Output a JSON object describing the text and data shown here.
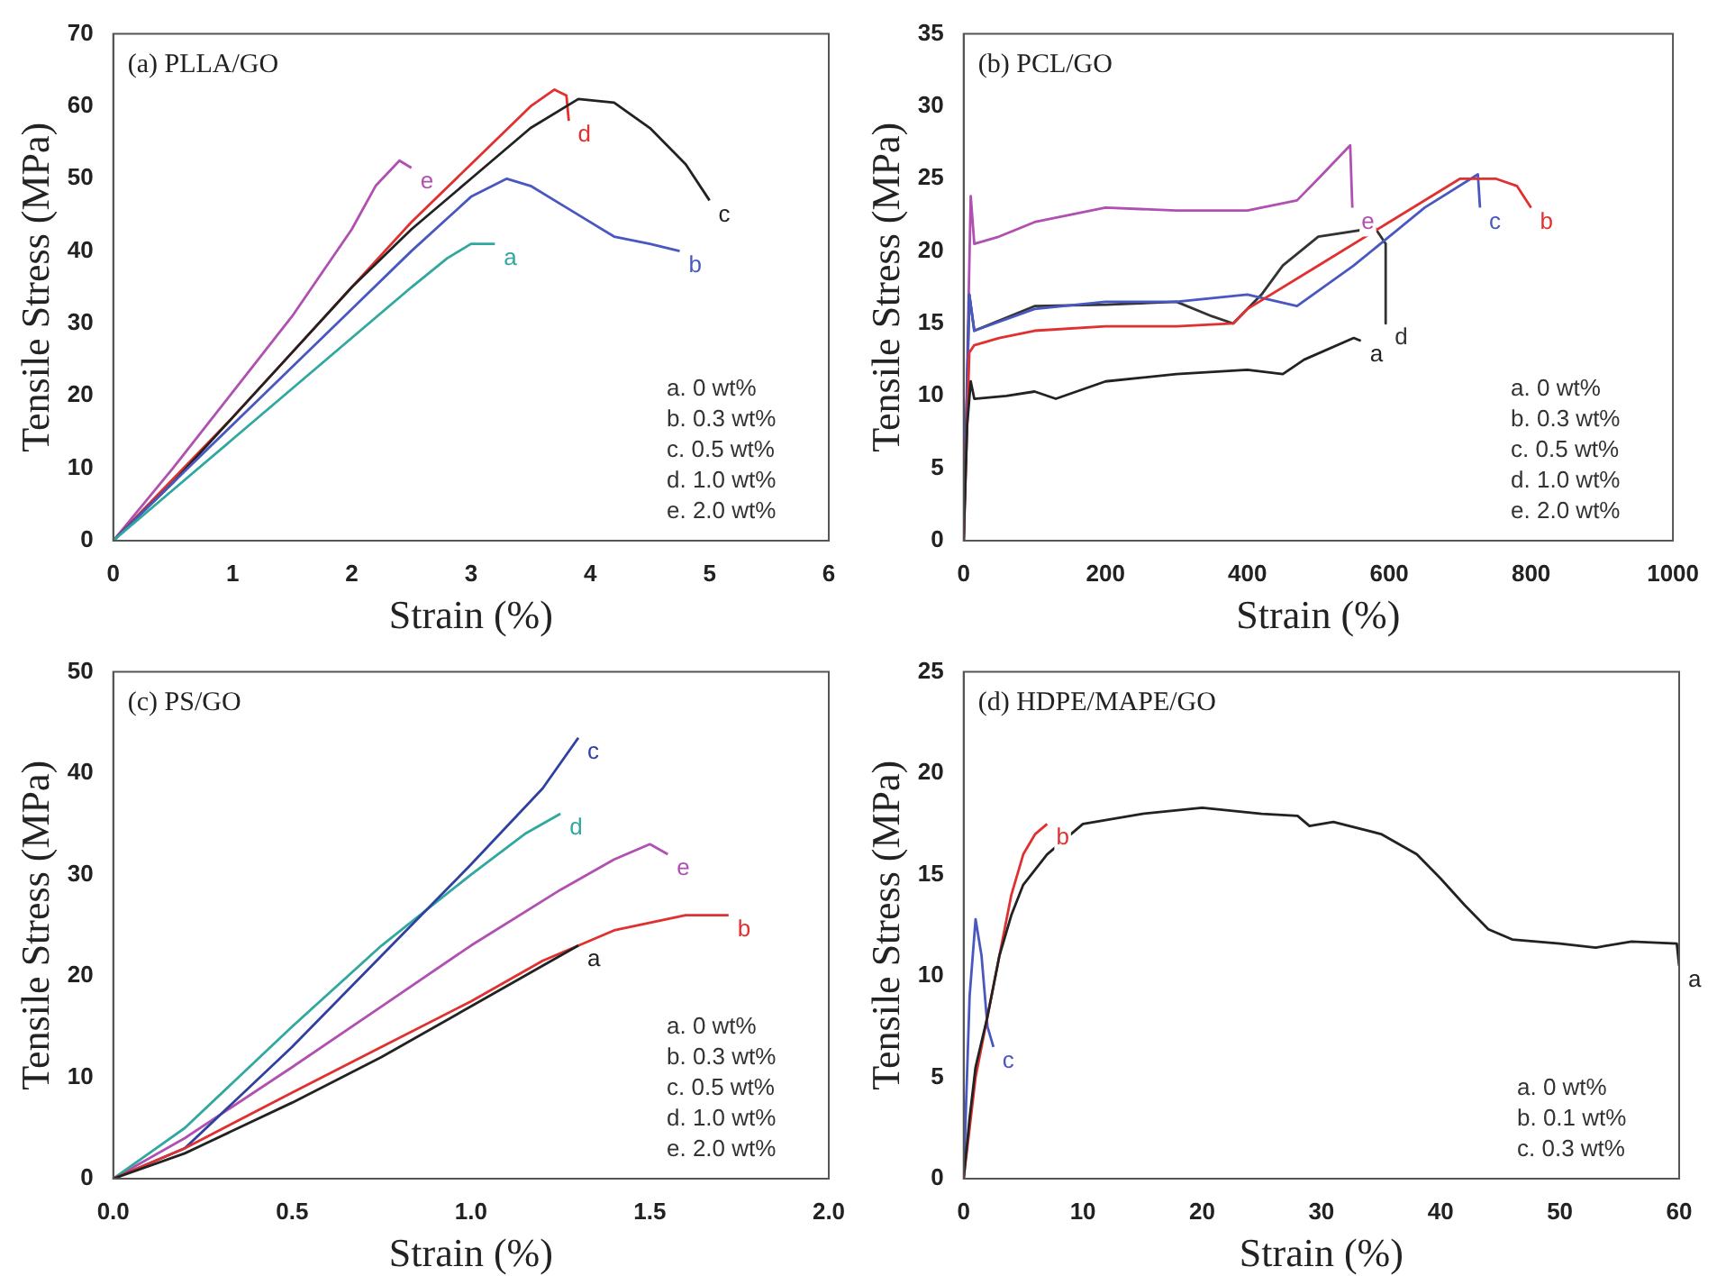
{
  "chart_data": [
    {
      "type": "line",
      "title": "(a) PLLA/GO",
      "xlabel": "Strain (%)",
      "ylabel": "Tensile Stress (MPa)",
      "xlim": [
        0,
        6
      ],
      "ylim": [
        0,
        70
      ],
      "xticks": [
        0,
        1,
        2,
        3,
        4,
        5,
        6
      ],
      "yticks": [
        0,
        10,
        20,
        30,
        40,
        50,
        60,
        70
      ],
      "grid": false,
      "marker": "none",
      "line_style": "solid",
      "annotations": [
        "a. 0 wt%",
        "b. 0.3 wt%",
        "c. 0.5 wt%",
        "d. 1.0 wt%",
        "e. 2.0 wt%"
      ],
      "series": [
        {
          "name": "a",
          "color": "#30a8a0",
          "x": [
            0,
            0.5,
            1,
            1.5,
            2,
            2.5,
            2.8,
            3.0,
            3.2
          ],
          "values": [
            0,
            7,
            14,
            21,
            28,
            35,
            39,
            41,
            41
          ]
        },
        {
          "name": "b",
          "color": "#4858c0",
          "x": [
            0,
            0.5,
            1,
            1.5,
            2,
            2.5,
            3,
            3.3,
            3.5,
            3.8,
            4.2,
            4.5,
            4.75
          ],
          "values": [
            0,
            8,
            16,
            24,
            32,
            40,
            47.5,
            50,
            49,
            46,
            42,
            41,
            40
          ]
        },
        {
          "name": "c",
          "color": "#222222",
          "x": [
            0,
            0.5,
            1,
            1.5,
            2,
            2.5,
            3,
            3.5,
            3.9,
            4.2,
            4.5,
            4.8,
            5
          ],
          "values": [
            0,
            8,
            17,
            26,
            35,
            43,
            50,
            57,
            61,
            60.5,
            57,
            52,
            47
          ]
        },
        {
          "name": "d",
          "color": "#e03030",
          "x": [
            0,
            0.5,
            1,
            1.5,
            2,
            2.5,
            3,
            3.5,
            3.7,
            3.8,
            3.82
          ],
          "values": [
            0,
            8.5,
            17,
            26,
            35,
            44,
            52,
            60,
            62.3,
            61.5,
            58
          ]
        },
        {
          "name": "e",
          "color": "#b050b0",
          "x": [
            0,
            0.5,
            1,
            1.5,
            2,
            2.2,
            2.4,
            2.5
          ],
          "values": [
            0,
            10,
            20.5,
            31,
            43,
            49,
            52.5,
            51.5
          ]
        }
      ]
    },
    {
      "type": "line",
      "title": "(b) PCL/GO",
      "xlabel": "Strain (%)",
      "ylabel": "Tensile Stress (MPa)",
      "xlim": [
        0,
        1000
      ],
      "ylim": [
        0,
        35
      ],
      "xticks": [
        0,
        200,
        400,
        600,
        800,
        1000
      ],
      "yticks": [
        0,
        5,
        10,
        15,
        20,
        25,
        30,
        35
      ],
      "grid": false,
      "marker": "none",
      "line_style": "solid",
      "annotations": [
        "a. 0 wt%",
        "b. 0.3 wt%",
        "c. 0.5 wt%",
        "d. 1.0 wt%",
        "e. 2.0 wt%"
      ],
      "series": [
        {
          "name": "a",
          "color": "#222222",
          "x": [
            0,
            5,
            10,
            15,
            60,
            100,
            130,
            200,
            300,
            400,
            450,
            480,
            550,
            560
          ],
          "values": [
            0,
            8,
            11,
            9.8,
            10,
            10.3,
            9.8,
            11,
            11.5,
            11.8,
            11.5,
            12.5,
            14,
            13.8
          ]
        },
        {
          "name": "b",
          "color": "#e03030",
          "x": [
            0,
            8,
            15,
            50,
            100,
            200,
            300,
            380,
            400,
            500,
            600,
            700,
            750,
            780,
            800
          ],
          "values": [
            0,
            13,
            13.5,
            14,
            14.5,
            14.8,
            14.8,
            15,
            16,
            19,
            22,
            25,
            25,
            24.5,
            23
          ]
        },
        {
          "name": "c",
          "color": "#4858c0",
          "x": [
            0,
            8,
            15,
            100,
            200,
            300,
            400,
            470,
            550,
            650,
            725,
            728
          ],
          "values": [
            0,
            17,
            14.5,
            16,
            16.5,
            16.5,
            17,
            16.2,
            19,
            23,
            25.3,
            23
          ]
        },
        {
          "name": "d",
          "color": "#333333",
          "x": [
            0,
            8,
            15,
            100,
            200,
            300,
            350,
            380,
            420,
            450,
            500,
            580,
            595,
            595
          ],
          "values": [
            0,
            17,
            14.5,
            16.2,
            16.3,
            16.5,
            15.5,
            15,
            17,
            19,
            21,
            21.6,
            20.5,
            15
          ]
        },
        {
          "name": "e",
          "color": "#b050b0",
          "x": [
            0,
            10,
            15,
            50,
            100,
            150,
            200,
            300,
            400,
            470,
            500,
            545,
            548
          ],
          "values": [
            0,
            23.8,
            20.5,
            21,
            22,
            22.5,
            23,
            22.8,
            22.8,
            23.5,
            25,
            27.3,
            23
          ]
        }
      ]
    },
    {
      "type": "line",
      "title": "(c) PS/GO",
      "xlabel": "Strain (%)",
      "ylabel": "Tensile Stress (MPa)",
      "xlim": [
        0,
        2
      ],
      "ylim": [
        0,
        50
      ],
      "xticks": [
        {
          "value": 0,
          "label": "0.0"
        },
        0.5,
        {
          "value": 1,
          "label": "1.0"
        },
        1.5,
        {
          "value": 2,
          "label": "2.0"
        }
      ],
      "yticks": [
        0,
        10,
        20,
        30,
        40,
        50
      ],
      "grid": false,
      "marker": "none",
      "line_style": "solid",
      "annotations": [
        "a. 0 wt%",
        "b. 0.3 wt%",
        "c. 0.5 wt%",
        "d. 1.0 wt%",
        "e. 2.0 wt%"
      ],
      "series": [
        {
          "name": "a",
          "color": "#222222",
          "x": [
            0,
            0.2,
            0.5,
            0.75,
            1,
            1.2,
            1.3
          ],
          "values": [
            0,
            2.5,
            7.5,
            12,
            17,
            21,
            23
          ]
        },
        {
          "name": "b",
          "color": "#e03030",
          "x": [
            0,
            0.2,
            0.5,
            0.75,
            1,
            1.2,
            1.4,
            1.6,
            1.72
          ],
          "values": [
            0,
            3,
            8.5,
            13,
            17.5,
            21.5,
            24.5,
            26,
            26
          ]
        },
        {
          "name": "c",
          "color": "#3040a0",
          "x": [
            0,
            0.2,
            0.5,
            0.75,
            1,
            1.2,
            1.3
          ],
          "values": [
            0,
            3,
            13,
            22,
            31,
            38.5,
            43.5
          ]
        },
        {
          "name": "d",
          "color": "#30a8a0",
          "x": [
            0,
            0.2,
            0.5,
            0.75,
            1,
            1.15,
            1.25
          ],
          "values": [
            0,
            5,
            15,
            23,
            30,
            34,
            36
          ]
        },
        {
          "name": "e",
          "color": "#b050b0",
          "x": [
            0,
            0.2,
            0.5,
            0.75,
            1,
            1.25,
            1.4,
            1.5,
            1.55
          ],
          "values": [
            0,
            4,
            11,
            17,
            23,
            28.5,
            31.5,
            33,
            32
          ]
        }
      ]
    },
    {
      "type": "line",
      "title": "(d) HDPE/MAPE/GO",
      "xlabel": "Strain (%)",
      "ylabel": "Tensile Stress (MPa)",
      "xlim": [
        0,
        60
      ],
      "ylim": [
        0,
        25
      ],
      "xticks": [
        0,
        10,
        20,
        30,
        40,
        50,
        60
      ],
      "yticks": [
        0,
        5,
        10,
        15,
        20,
        25
      ],
      "grid": false,
      "marker": "none",
      "line_style": "solid",
      "annotations": [
        "a. 0 wt%",
        "b. 0.1 wt%",
        "c. 0.3 wt%"
      ],
      "series": [
        {
          "name": "a",
          "color": "#222222",
          "x": [
            0,
            0.5,
            1,
            2,
            3,
            4,
            5,
            7,
            10,
            15,
            20,
            25,
            28,
            29,
            31,
            35,
            38,
            40,
            42,
            44,
            46,
            50,
            53,
            56,
            59.8,
            60
          ],
          "values": [
            0,
            3,
            5.5,
            8,
            11,
            13,
            14.5,
            16,
            17.5,
            18,
            18.3,
            18,
            17.9,
            17.4,
            17.6,
            17,
            16,
            14.8,
            13.5,
            12.3,
            11.8,
            11.6,
            11.4,
            11.7,
            11.6,
            10.5
          ]
        },
        {
          "name": "b",
          "color": "#e03030",
          "x": [
            0,
            1,
            2,
            3,
            4,
            5,
            6,
            7
          ],
          "values": [
            0,
            5,
            8,
            11,
            14,
            16,
            17,
            17.5
          ]
        },
        {
          "name": "c",
          "color": "#4858c0",
          "x": [
            0,
            0.5,
            1,
            1.5,
            2,
            2.5
          ],
          "values": [
            0,
            9,
            12.8,
            11,
            7.5,
            6.5
          ]
        }
      ]
    }
  ]
}
